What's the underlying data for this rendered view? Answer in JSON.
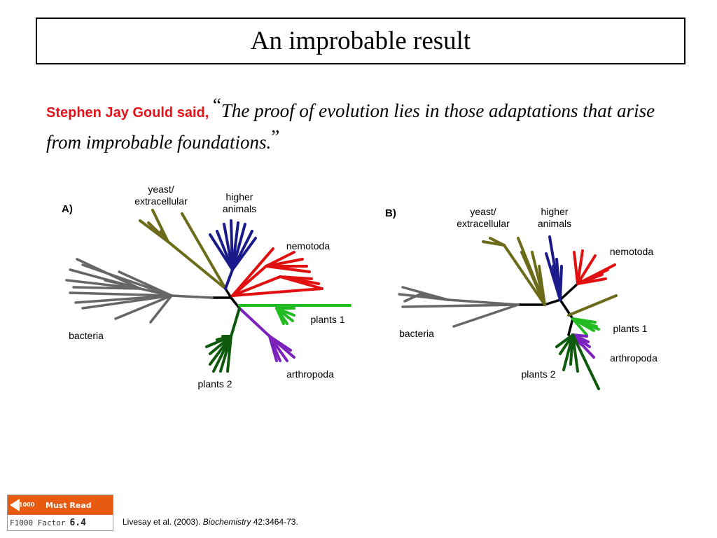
{
  "title": "An improbable result",
  "quote": {
    "speaker": "Stephen Jay Gould said, ",
    "open_mark": "“",
    "text": "The proof of evolution lies in those adaptations that arise from improbable foundations.",
    "close_mark": "”"
  },
  "panel_a": {
    "label": "A)",
    "clades": {
      "yeast": "yeast/ extracellular",
      "higher": "higher animals",
      "nematoda": "nemotoda",
      "plants1": "plants 1",
      "bacteria": "bacteria",
      "plants2": "plants 2",
      "arthropoda": "arthropoda"
    }
  },
  "panel_b": {
    "label": "B)",
    "clades": {
      "yeast": "yeast/ extracellular",
      "higher": "higher animals",
      "nematoda": "nemotoda",
      "plants1": "plants 1",
      "bacteria": "bacteria",
      "arthropoda": "arthropoda",
      "plants2": "plants 2"
    }
  },
  "colors": {
    "bacteria": "#666666",
    "yeast": "#6b6b1a",
    "higher": "#1a1a8a",
    "nematoda": "#e01010",
    "plants1": "#22bb22",
    "arthropoda": "#7a22bb",
    "plants2": "#0d5a0d",
    "backbone": "#000000",
    "speaker": "#e8121a",
    "badge": "#e85a10"
  },
  "badge": {
    "heading": "Must Read",
    "logo_text": "1000",
    "factor_label": "F1000 Factor",
    "factor_value": "6.4"
  },
  "citation": {
    "authors": "Livesay et al. (2003). ",
    "journal": "Biochemistry",
    "details": " 42:3464-73."
  }
}
